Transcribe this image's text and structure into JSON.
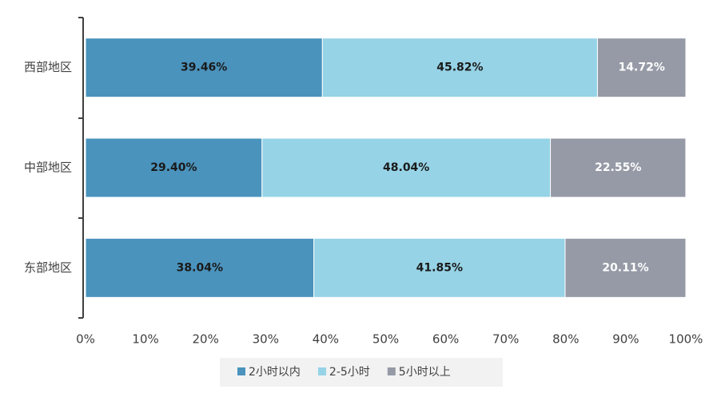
{
  "chart_data": {
    "type": "stacked_bar_horizontal",
    "categories": [
      "西部地区",
      "中部地区",
      "东部地区"
    ],
    "series": [
      {
        "name": "2小时以内",
        "color": "#4a93bd",
        "values": [
          39.46,
          29.4,
          38.04
        ],
        "value_labels": [
          "39.46%",
          "29.40%",
          "38.04%"
        ]
      },
      {
        "name": "2-5小时",
        "color": "#96d3e6",
        "values": [
          45.82,
          48.04,
          41.85
        ],
        "value_labels": [
          "45.82%",
          "48.04%",
          "41.85%"
        ]
      },
      {
        "name": "5小时以上",
        "color": "#959aa6",
        "values": [
          14.72,
          22.55,
          20.11
        ],
        "value_labels": [
          "14.72%",
          "22.55%",
          "20.11%"
        ]
      }
    ],
    "xlim": [
      0,
      100
    ],
    "xticks": [
      {
        "value": 0,
        "label": "0%"
      },
      {
        "value": 10,
        "label": "10%"
      },
      {
        "value": 20,
        "label": "20%"
      },
      {
        "value": 30,
        "label": "30%"
      },
      {
        "value": 40,
        "label": "40%"
      },
      {
        "value": 50,
        "label": "50%"
      },
      {
        "value": 60,
        "label": "60%"
      },
      {
        "value": 70,
        "label": "70%"
      },
      {
        "value": 80,
        "label": "80%"
      },
      {
        "value": 90,
        "label": "90%"
      },
      {
        "value": 100,
        "label": "100%"
      }
    ],
    "grid": false,
    "legend": "bottom"
  }
}
